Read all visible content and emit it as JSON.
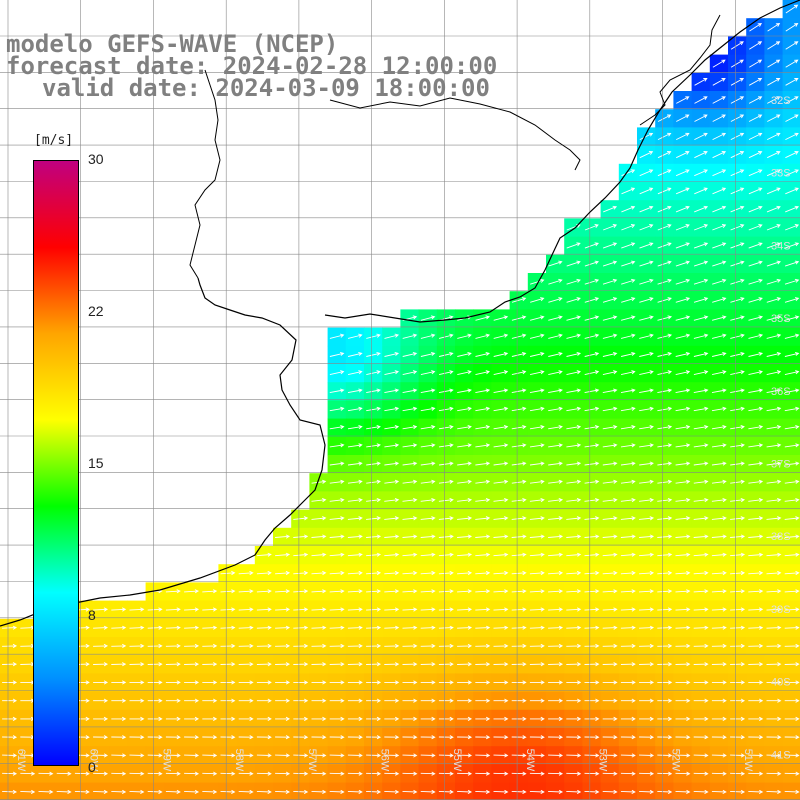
{
  "header": {
    "line1": "modelo GEFS-WAVE (NCEP)",
    "line2": "forecast date: 2024-02-28 12:00:00",
    "line3": "valid date: 2024-03-09 18:00:00"
  },
  "colorbar": {
    "unit": "[m/s]",
    "ticks": [
      "30",
      "22",
      "15",
      "8",
      "0"
    ],
    "tick_values": [
      30,
      22,
      15,
      8,
      0
    ],
    "colors": [
      "#0000ff",
      "#0090ff",
      "#00ffff",
      "#00ff00",
      "#ffff00",
      "#ffa500",
      "#ff0000",
      "#c00080"
    ]
  },
  "map": {
    "lon_range": [
      -62,
      -51
    ],
    "lat_range": [
      -41.5,
      -31.5
    ],
    "lat_labels": [
      "32S",
      "33S",
      "34S",
      "35S",
      "36S",
      "37S",
      "38S",
      "39S",
      "40S",
      "41S"
    ],
    "lon_labels": [
      "61W",
      "60W",
      "59W",
      "58W",
      "57W",
      "56W",
      "55W",
      "54W",
      "53W",
      "52W",
      "51W"
    ],
    "wind_vector_color": "#ffffff",
    "land_color": "#ffffff",
    "coast_color": "#000000",
    "grid_color": "#888888"
  }
}
